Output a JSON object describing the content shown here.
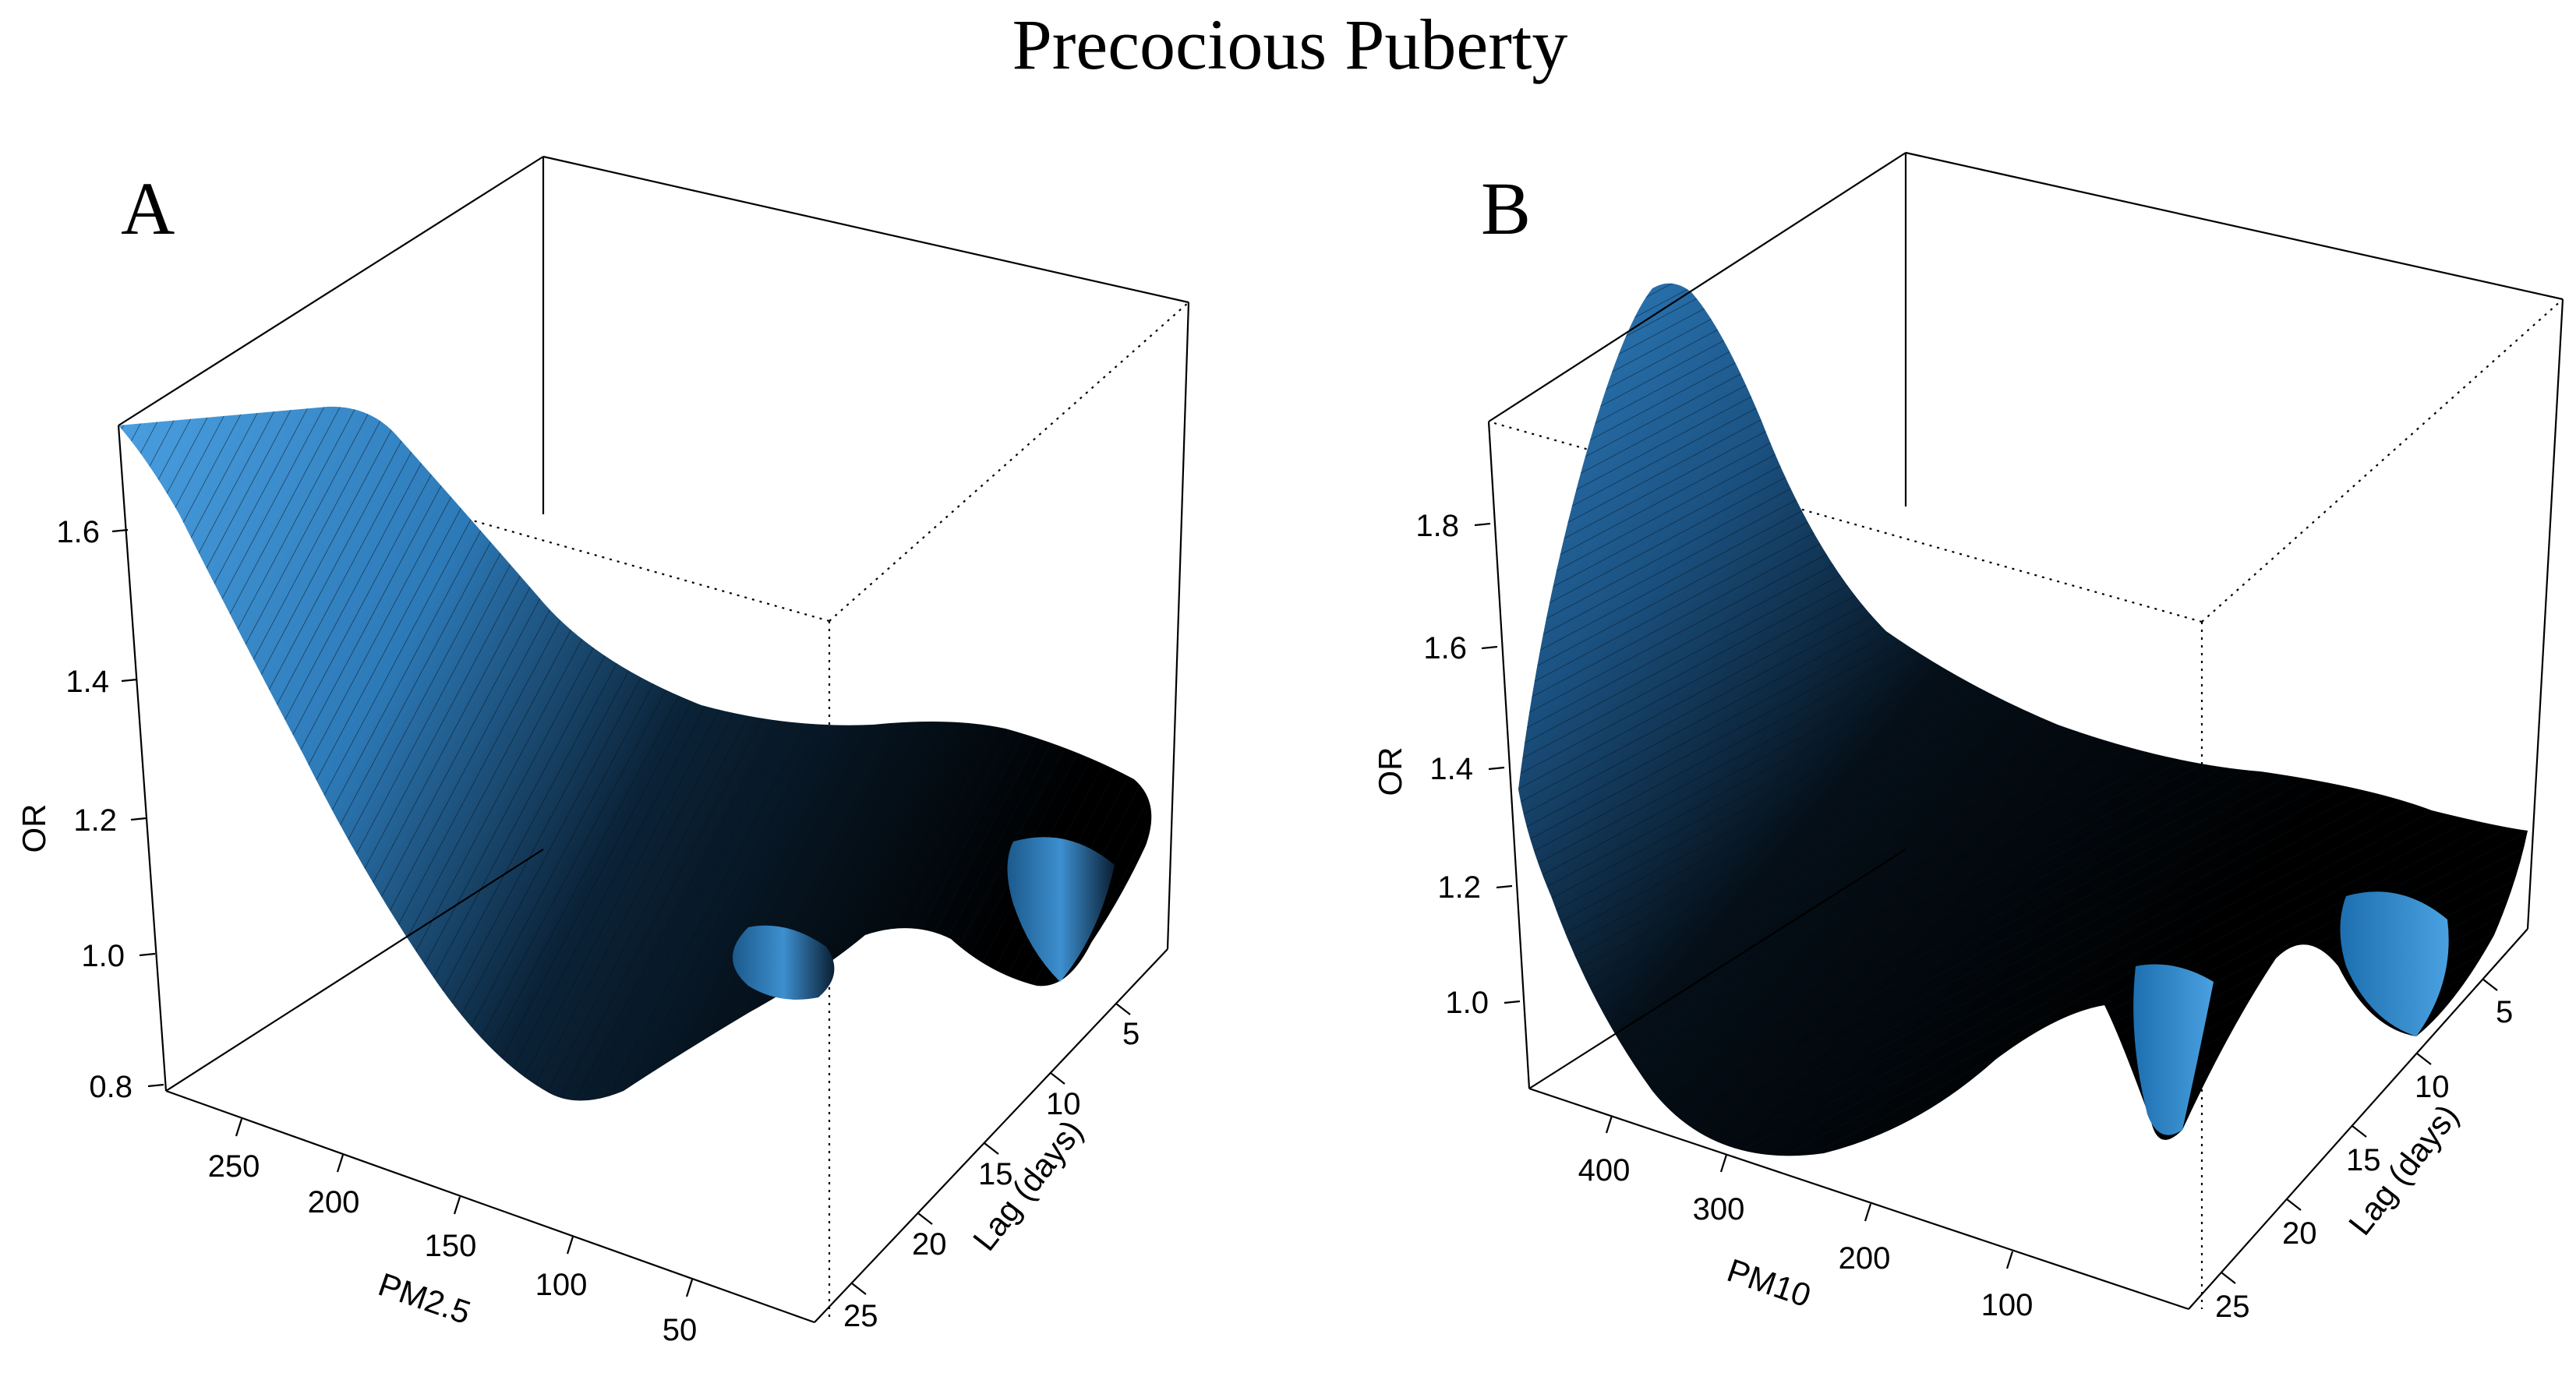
{
  "figure": {
    "title": "Precocious Puberty"
  },
  "chart_data": [
    {
      "type": "surface3d",
      "panel_label": "A",
      "xlabel": "PM2.5",
      "ylabel": "Lag (days)",
      "zlabel": "OR",
      "x_ticks": [
        "250",
        "200",
        "150",
        "100",
        "50"
      ],
      "y_ticks": [
        "5",
        "10",
        "15",
        "20",
        "25"
      ],
      "z_ticks": [
        "0.8",
        "1.0",
        "1.2",
        "1.4",
        "1.6"
      ],
      "xlim": [
        0,
        290
      ],
      "ylim": [
        0,
        28
      ],
      "zlim": [
        0.78,
        1.78
      ],
      "surface_color": "#3a8fd0",
      "shadow_color": "#000000",
      "surface_profile_at_lag_0": [
        {
          "pm": 290,
          "or": 1.74
        },
        {
          "pm": 220,
          "or": 1.3
        },
        {
          "pm": 150,
          "or": 1.02
        },
        {
          "pm": 100,
          "or": 0.93
        },
        {
          "pm": 50,
          "or": 0.99
        },
        {
          "pm": 0,
          "or": 1.12
        }
      ],
      "surface_profile_at_lag_28": [
        {
          "pm": 290,
          "or": 1.74
        },
        {
          "pm": 220,
          "or": 1.4
        },
        {
          "pm": 150,
          "or": 1.1
        },
        {
          "pm": 100,
          "or": 0.95
        },
        {
          "pm": 50,
          "or": 1.02
        },
        {
          "pm": 0,
          "or": 1.26
        }
      ]
    },
    {
      "type": "surface3d",
      "panel_label": "B",
      "xlabel": "PM10",
      "ylabel": "Lag (days)",
      "zlabel": "OR",
      "x_ticks": [
        "400",
        "300",
        "200",
        "100"
      ],
      "y_ticks": [
        "5",
        "10",
        "15",
        "20",
        "25"
      ],
      "z_ticks": [
        "1.0",
        "1.2",
        "1.4",
        "1.6",
        "1.8"
      ],
      "xlim": [
        0,
        460
      ],
      "ylim": [
        0,
        28
      ],
      "zlim": [
        0.88,
        1.98
      ],
      "surface_color": "#3a8fd0",
      "shadow_color": "#000000",
      "surface_profile_at_lag_0": [
        {
          "pm": 460,
          "or": 1.36
        },
        {
          "pm": 330,
          "or": 1.97
        },
        {
          "pm": 220,
          "or": 1.4
        },
        {
          "pm": 120,
          "or": 1.05
        },
        {
          "pm": 0,
          "or": 1.1
        }
      ],
      "surface_profile_at_lag_28": [
        {
          "pm": 460,
          "or": 1.36
        },
        {
          "pm": 330,
          "or": 1.05
        },
        {
          "pm": 220,
          "or": 0.95
        },
        {
          "pm": 120,
          "or": 1.15
        },
        {
          "pm": 0,
          "or": 1.3
        }
      ]
    }
  ]
}
